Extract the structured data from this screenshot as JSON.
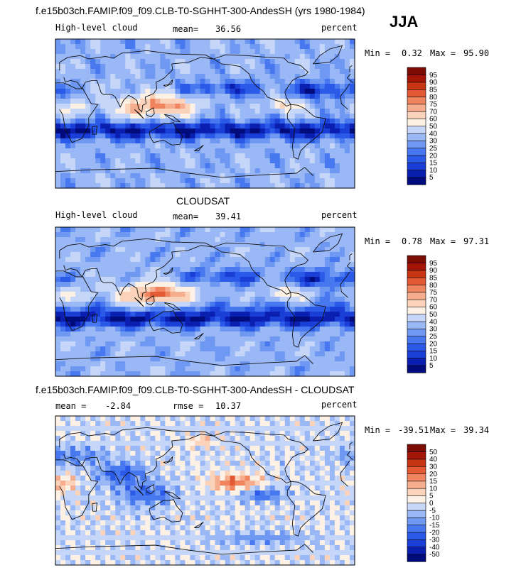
{
  "season": "JJA",
  "chart_data": [
    {
      "type": "heatmap",
      "title": "f.e15b03ch.FAMIP.f09_f09.CLB-T0-SGHHT-300-AndesSH (yrs 1980-1984)",
      "variable": "High-level cloud",
      "units": "percent",
      "mean_label": "mean=",
      "mean": "36.56",
      "min_label": "Min =",
      "min": "0.32",
      "max_label": "Max =",
      "max": "95.90",
      "levels": [
        "5",
        "10",
        "15",
        "20",
        "25",
        "30",
        "40",
        "50",
        "60",
        "70",
        "75",
        "80",
        "85",
        "90",
        "95"
      ],
      "colors": [
        "#000c7c",
        "#0a1fb0",
        "#1a3fd6",
        "#2b5ae8",
        "#4778ef",
        "#6e98f2",
        "#9bb8f6",
        "#c5d6f8",
        "#fdf1e6",
        "#fbd3bb",
        "#f6ad8d",
        "#f0845f",
        "#e25a34",
        "#c73512",
        "#a31505",
        "#7c0c04"
      ],
      "field": "model"
    },
    {
      "type": "heatmap",
      "title": "CLOUDSAT",
      "variable": "High-level cloud",
      "units": "percent",
      "mean_label": "mean=",
      "mean": "39.41",
      "min_label": "Min =",
      "min": "0.78",
      "max_label": "Max =",
      "max": "97.31",
      "levels": [
        "5",
        "10",
        "15",
        "20",
        "25",
        "30",
        "40",
        "50",
        "60",
        "70",
        "75",
        "80",
        "85",
        "90",
        "95"
      ],
      "colors": [
        "#000c7c",
        "#0a1fb0",
        "#1a3fd6",
        "#2b5ae8",
        "#4778ef",
        "#6e98f2",
        "#9bb8f6",
        "#c5d6f8",
        "#fdf1e6",
        "#fbd3bb",
        "#f6ad8d",
        "#f0845f",
        "#e25a34",
        "#c73512",
        "#a31505",
        "#7c0c04"
      ],
      "field": "obs"
    },
    {
      "type": "heatmap",
      "title": "f.e15b03ch.FAMIP.f09_f09.CLB-T0-SGHHT-300-AndesSH - CLOUDSAT",
      "variable": "",
      "units": "percent",
      "mean_label": "mean =",
      "mean": "-2.84",
      "rmse_label": "rmse =",
      "rmse": "10.37",
      "min_label": "Min =",
      "min": "-39.51",
      "max_label": "Max =",
      "max": "39.34",
      "levels": [
        "-50",
        "-40",
        "-30",
        "-20",
        "-15",
        "-10",
        "-5",
        "0",
        "5",
        "10",
        "15",
        "20",
        "30",
        "40",
        "50"
      ],
      "colors": [
        "#000c7c",
        "#0a1fb0",
        "#1a3fd6",
        "#2b5ae8",
        "#4778ef",
        "#6e98f2",
        "#9bb8f6",
        "#c5d6f8",
        "#fdf1e6",
        "#fbd3bb",
        "#f6ad8d",
        "#f0845f",
        "#e25a34",
        "#c73512",
        "#a31505",
        "#7c0c04"
      ],
      "field": "diff"
    }
  ]
}
